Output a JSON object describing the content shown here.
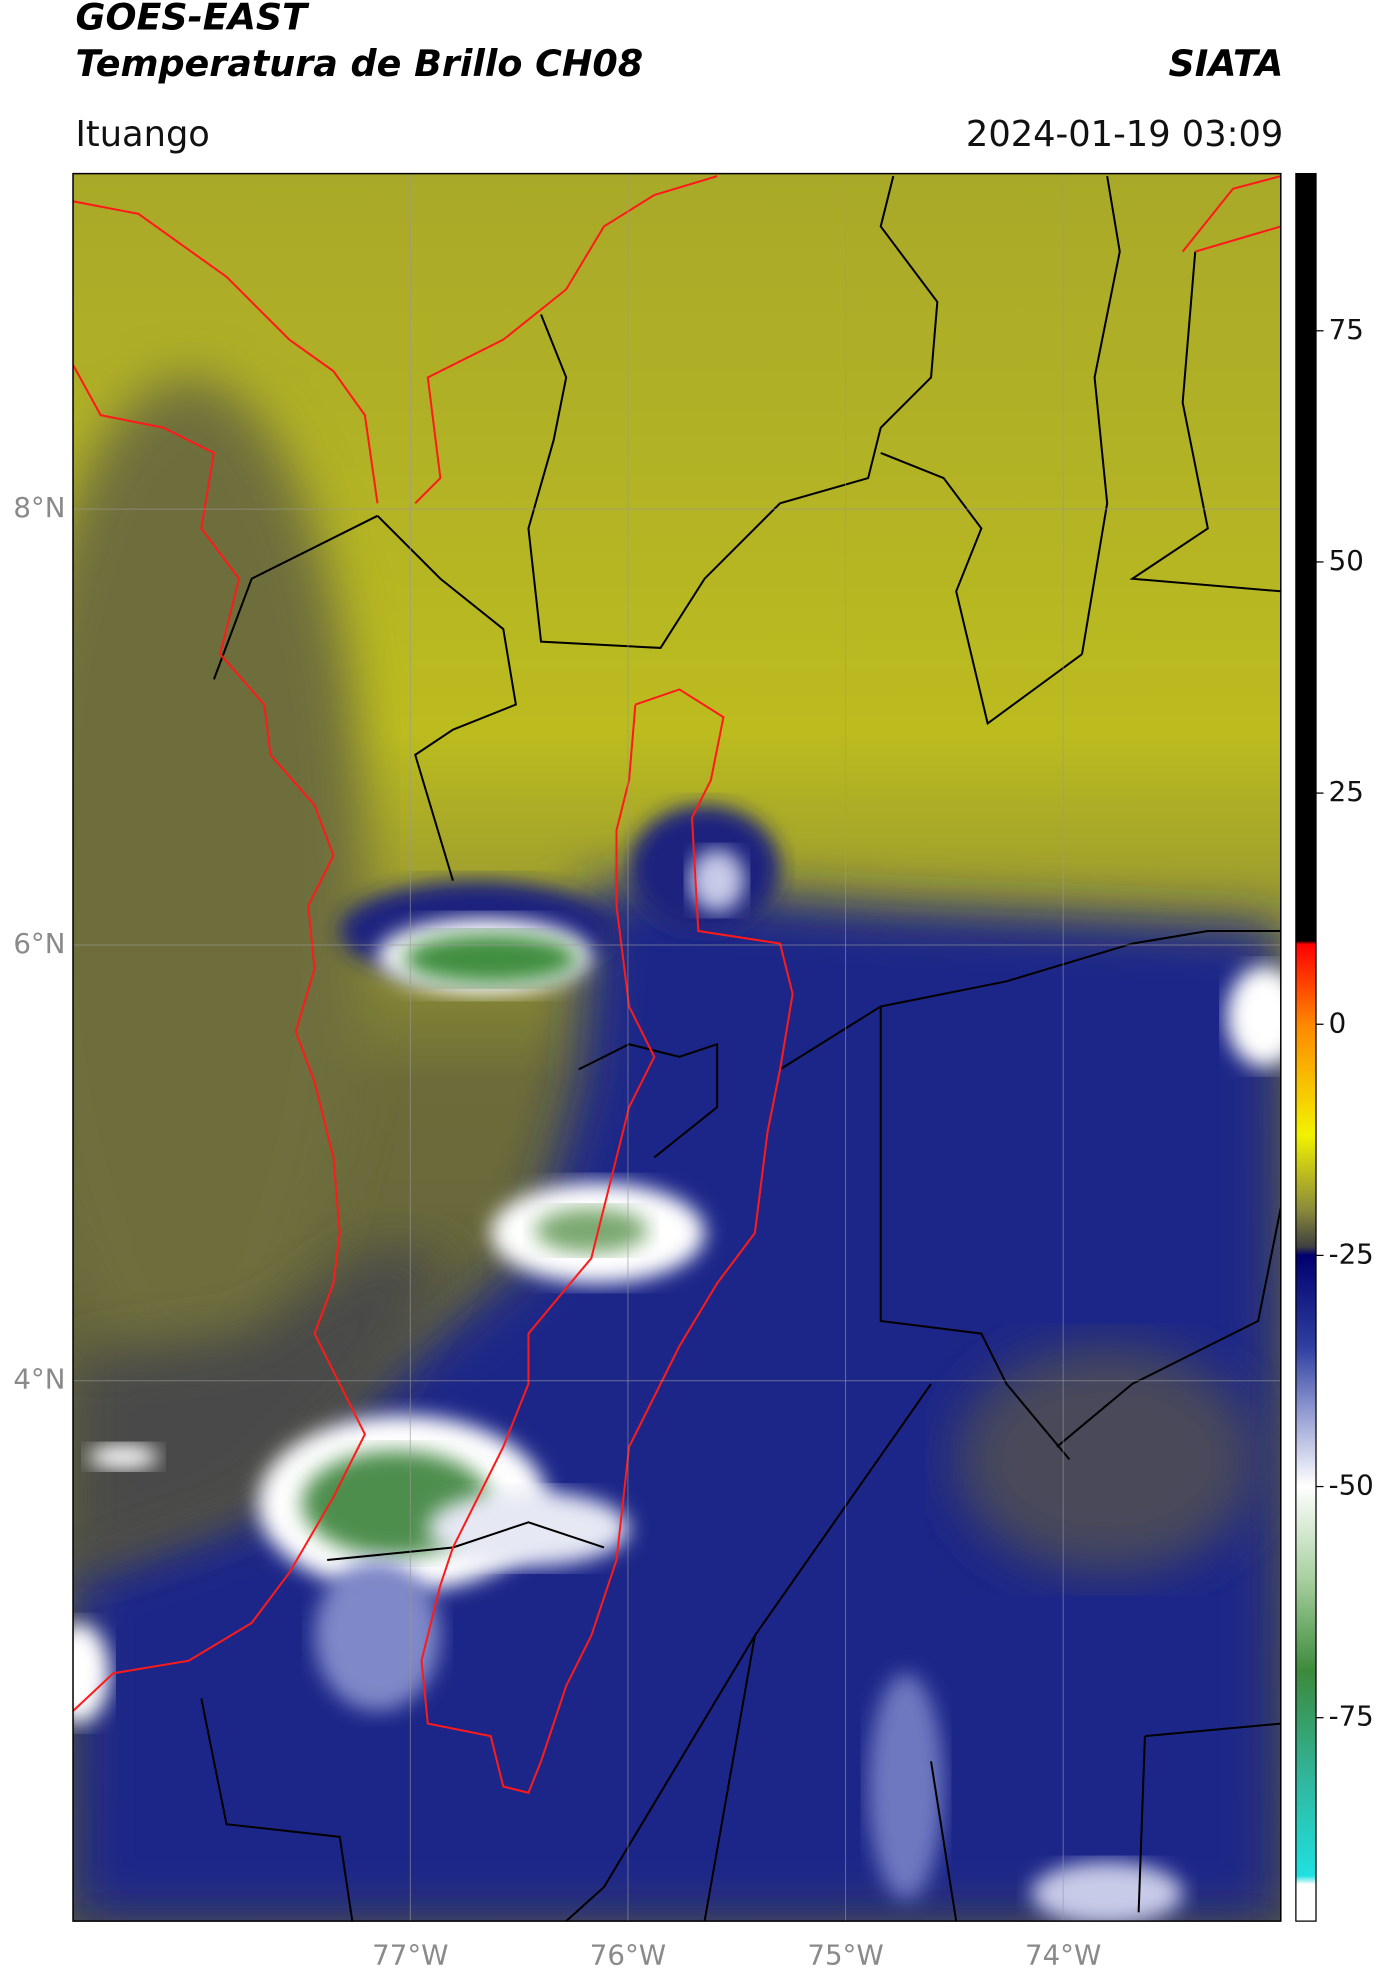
{
  "header": {
    "title": "GOES-EAST",
    "subtitle": "Temperatura de Brillo CH08",
    "brand": "SIATA",
    "location": "Ituango",
    "datetime": "2024-01-19 03:09"
  },
  "map": {
    "xlim": [
      -78.55,
      -73.0
    ],
    "ylim": [
      1.52,
      9.54
    ],
    "xticks": [
      {
        "value": -77,
        "label": "77°W"
      },
      {
        "value": -76,
        "label": "76°W"
      },
      {
        "value": -75,
        "label": "75°W"
      },
      {
        "value": -74,
        "label": "74°W"
      }
    ],
    "yticks": [
      {
        "value": 8,
        "label": "8°N"
      },
      {
        "value": 6,
        "label": "6°N"
      },
      {
        "value": 4,
        "label": "4°N"
      }
    ],
    "grid": true
  },
  "colorbar": {
    "lim": [
      -97,
      92
    ],
    "ticks": [
      75,
      50,
      25,
      0,
      -25,
      -50,
      -75
    ]
  }
}
